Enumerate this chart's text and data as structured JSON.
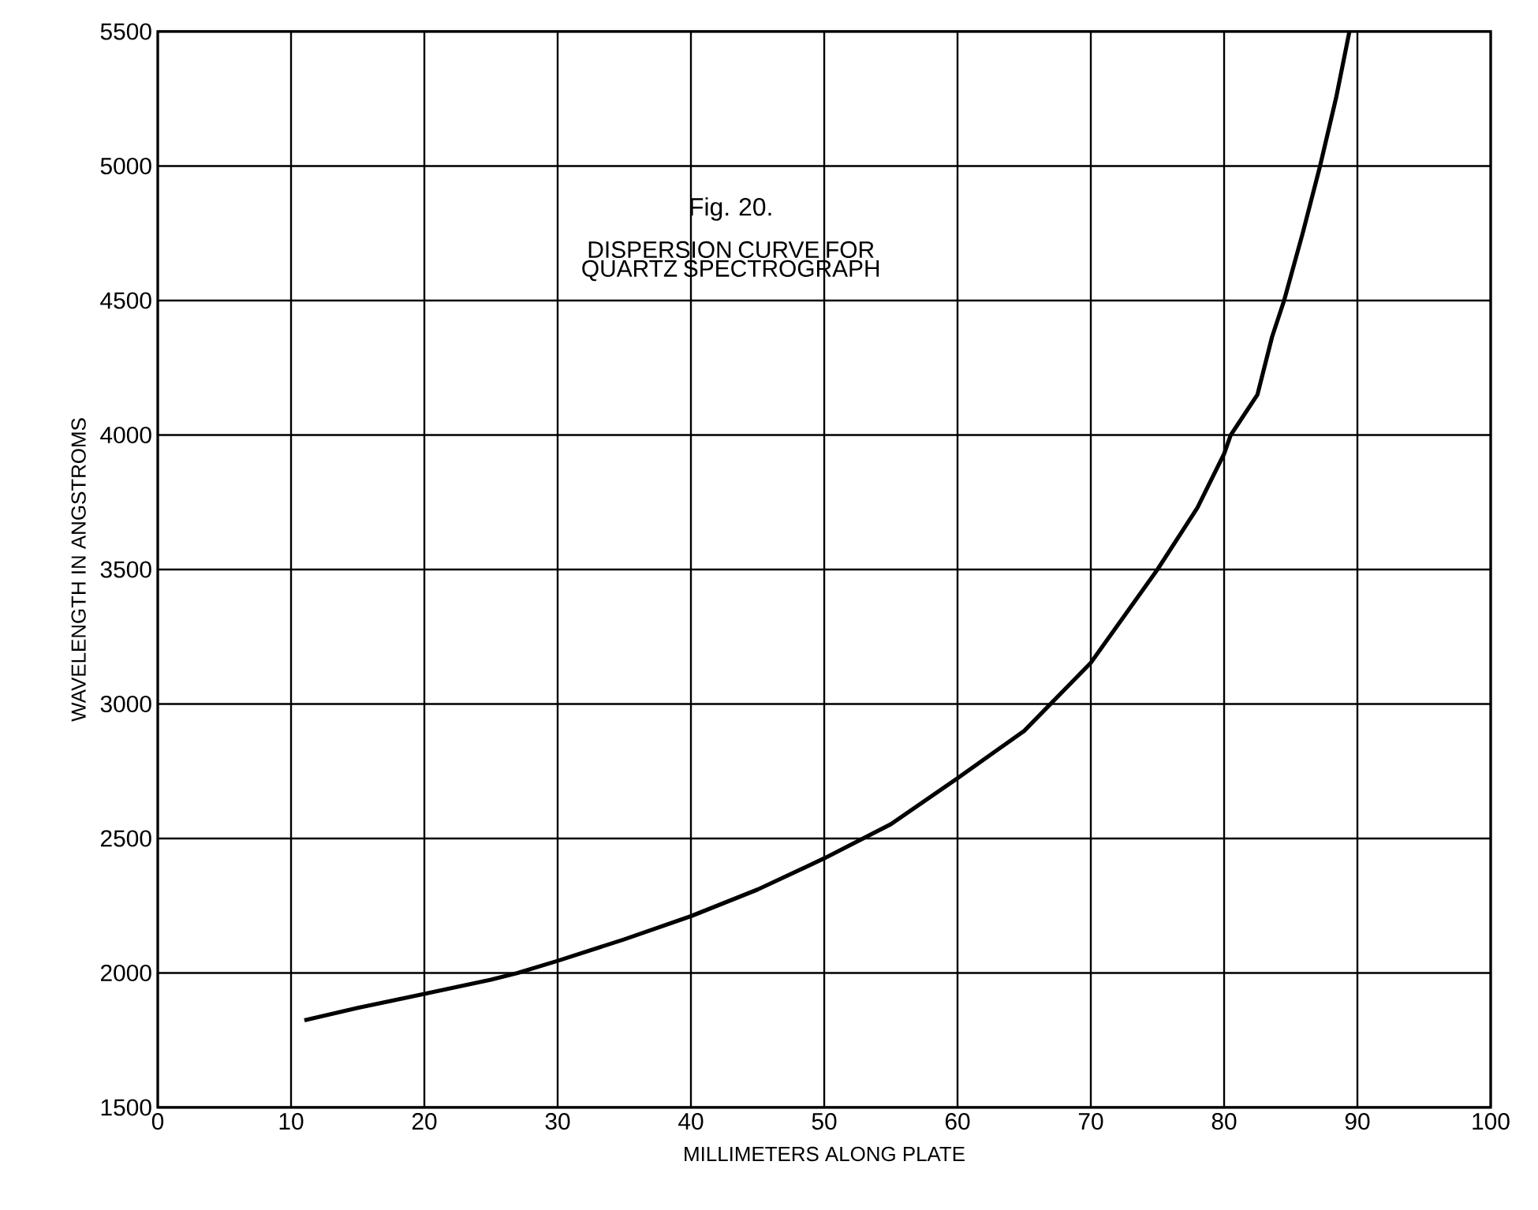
{
  "chart_data": {
    "type": "line",
    "title": "Fig. 20.",
    "subtitle": "DISPERSION CURVE FOR QUARTZ SPECTROGRAPH",
    "xlabel": "MILLIMETERS ALONG PLATE",
    "ylabel": "WAVELENGTH IN ANGSTROMS",
    "xlim": [
      0,
      100
    ],
    "ylim": [
      1500,
      5500
    ],
    "xticks": [
      0,
      10,
      20,
      30,
      40,
      50,
      60,
      70,
      80,
      90,
      100
    ],
    "yticks": [
      1500,
      2000,
      2500,
      3000,
      3500,
      4000,
      4500,
      5000,
      5500
    ],
    "grid": true,
    "marker": "none",
    "line_style": "solid",
    "series": [
      {
        "color": "#000000",
        "x": [
          11,
          15,
          20,
          25,
          27,
          30,
          35,
          40,
          45,
          50,
          55,
          60,
          65,
          70,
          75,
          78,
          80,
          80.5,
          82.5,
          83.6,
          84.5,
          85.9,
          87.2,
          88.4,
          89.4
        ],
        "values": [
          1824,
          1870,
          1922,
          1975,
          2000,
          2045,
          2125,
          2211,
          2310,
          2426,
          2553,
          2724,
          2900,
          3153,
          3500,
          3730,
          3930,
          4000,
          4150,
          4365,
          4500,
          4751,
          5000,
          5253,
          5500
        ]
      }
    ]
  }
}
